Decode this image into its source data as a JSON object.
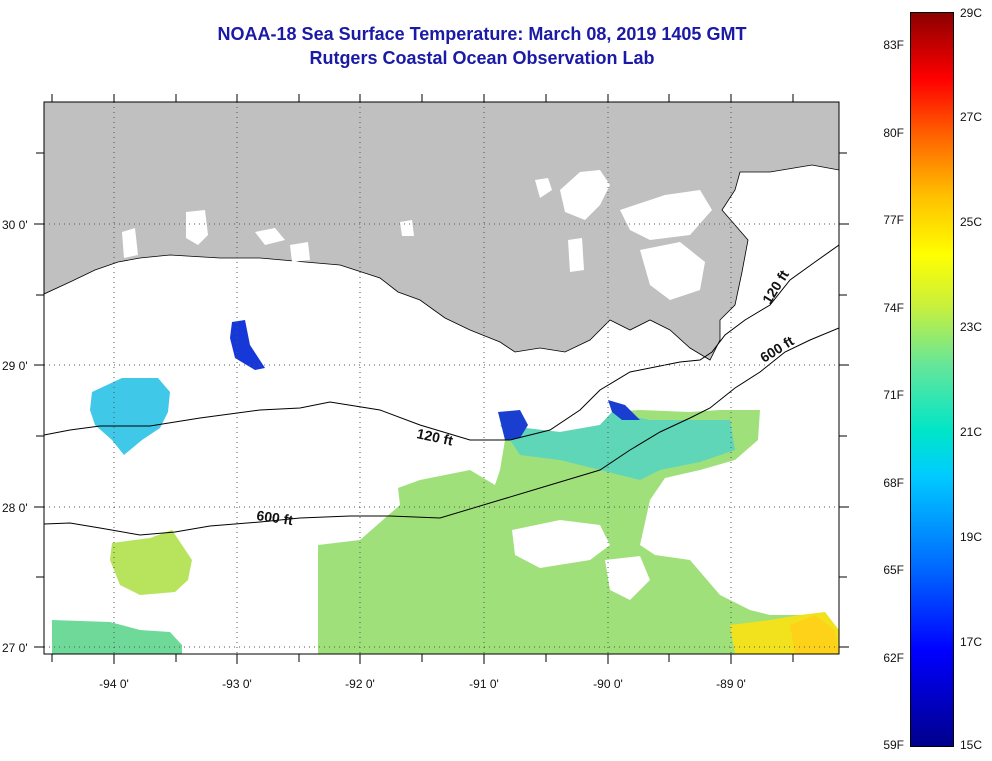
{
  "title": {
    "line1": "NOAA-18 Sea Surface Temperature:  March 08, 2019 1405 GMT",
    "line2": "Rutgers Coastal Ocean Observation Lab"
  },
  "map": {
    "longitude_labels": [
      "-94 0'",
      "-93 0'",
      "-92 0'",
      "-91 0'",
      "-90 0'",
      "-89 0'"
    ],
    "longitude_values": [
      -94,
      -93,
      -92,
      -91,
      -90,
      -89
    ],
    "latitude_labels": [
      "30 0'",
      "29 0'",
      "28 0'",
      "27 0'"
    ],
    "latitude_values": [
      30,
      29,
      28,
      27
    ],
    "lon_range": [
      -94.55,
      -88.0
    ],
    "lat_range": [
      26.95,
      30.85
    ],
    "contour_labels": [
      "120 ft",
      "600 ft",
      "120 ft",
      "600 ft"
    ],
    "colors": {
      "land": "#c0c0c0",
      "cloud_nodata": "#ffffff",
      "sst_warm_patch": "#f2e21e",
      "sst_cool_patch": "#3fd7c8",
      "sst_cold_patch": "#1638d8"
    }
  },
  "colorbar": {
    "fahrenheit_labels": [
      "83F",
      "80F",
      "77F",
      "74F",
      "71F",
      "68F",
      "65F",
      "62F",
      "59F"
    ],
    "celsius_labels": [
      "29C",
      "27C",
      "25C",
      "23C",
      "21C",
      "19C",
      "17C",
      "15C"
    ],
    "range_celsius": [
      15,
      29
    ],
    "range_fahrenheit": [
      59,
      84.2
    ]
  }
}
